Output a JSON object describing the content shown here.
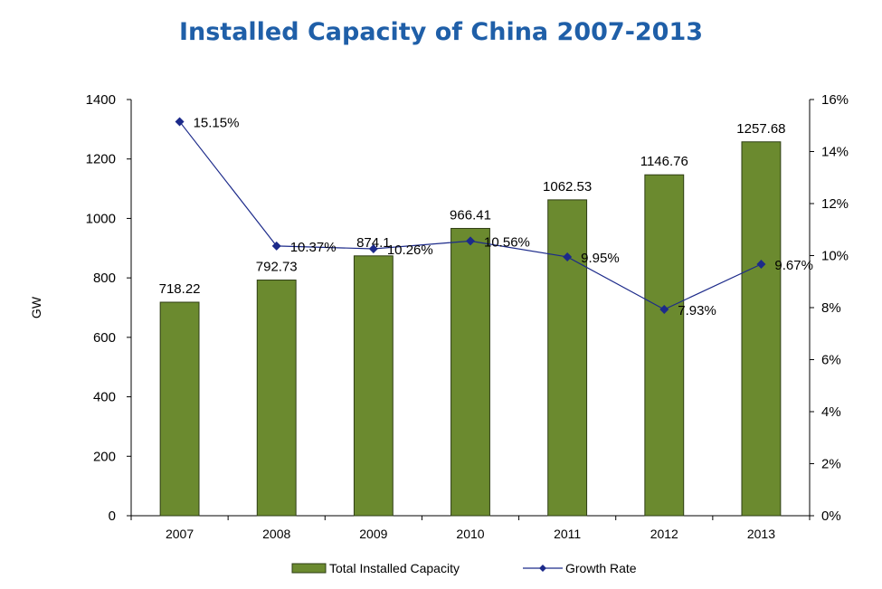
{
  "chart_data": {
    "type": "bar",
    "title": "Installed Capacity of China 2007-2013",
    "xlabel": "",
    "ylabel": "GW",
    "categories": [
      "2007",
      "2008",
      "2009",
      "2010",
      "2011",
      "2012",
      "2013"
    ],
    "ylim": [
      0,
      1400
    ],
    "y2lim": [
      0,
      16
    ],
    "yticks": [
      "0",
      "200",
      "400",
      "600",
      "800",
      "1000",
      "1200",
      "1400"
    ],
    "y2ticks": [
      "0%",
      "2%",
      "4%",
      "6%",
      "8%",
      "10%",
      "12%",
      "14%",
      "16%"
    ],
    "grid": false,
    "legend_position": "bottom",
    "series": [
      {
        "name": "Total Installed  Capacity",
        "type": "bar",
        "axis": "left",
        "color": "#6b8a2f",
        "values": [
          718.22,
          792.73,
          874.1,
          966.41,
          1062.53,
          1146.76,
          1257.68
        ],
        "labels": [
          "718.22",
          "792.73",
          "874.1",
          "966.41",
          "1062.53",
          "1146.76",
          "1257.68"
        ]
      },
      {
        "name": "Growth Rate",
        "type": "line",
        "axis": "right",
        "color": "#1c2a8a",
        "values": [
          15.15,
          10.37,
          10.26,
          10.56,
          9.95,
          7.93,
          9.67
        ],
        "labels": [
          "15.15%",
          "10.37%",
          "10.26%",
          "10.56%",
          "9.95%",
          "7.93%",
          "9.67%"
        ]
      }
    ]
  }
}
